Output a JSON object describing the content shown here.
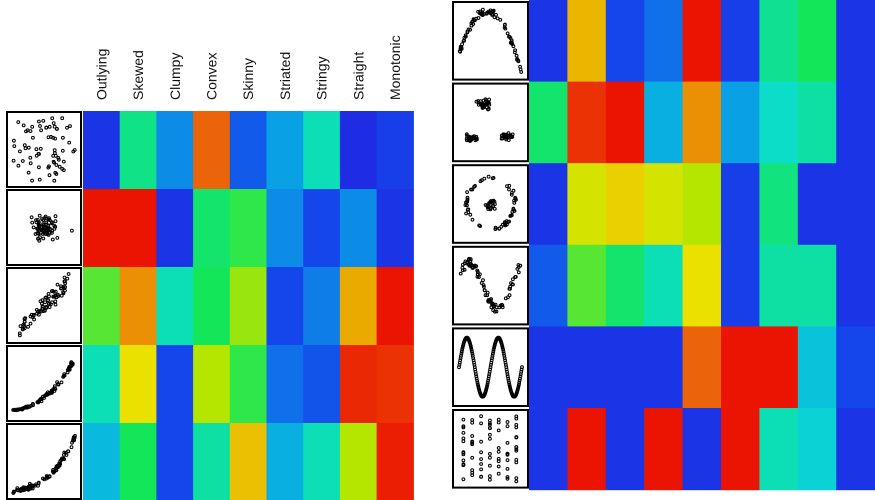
{
  "chart_data": [
    {
      "type": "heatmap",
      "title": "",
      "columns": [
        "Outlying",
        "Skewed",
        "Clumpy",
        "Convex",
        "Skinny",
        "Striated",
        "Stringy",
        "Straight",
        "Monotonic"
      ],
      "rows": [
        {
          "thumbnail": "uniform-random-scatter",
          "values": [
            0.08,
            0.45,
            0.22,
            0.9,
            0.15,
            0.25,
            0.4,
            0.06,
            0.1
          ]
        },
        {
          "thumbnail": "central-cluster-scatter",
          "values": [
            0.98,
            0.98,
            0.08,
            0.48,
            0.52,
            0.22,
            0.12,
            0.22,
            0.08
          ]
        },
        {
          "thumbnail": "linear-correlation-scatter",
          "values": [
            0.55,
            0.85,
            0.4,
            0.5,
            0.6,
            0.12,
            0.2,
            0.82,
            0.98
          ]
        },
        {
          "thumbnail": "curved-fan-scatter",
          "values": [
            0.4,
            0.72,
            0.12,
            0.62,
            0.52,
            0.18,
            0.14,
            0.96,
            0.95
          ]
        },
        {
          "thumbnail": "exponential-curve-scatter",
          "values": [
            0.3,
            0.5,
            0.12,
            0.42,
            0.78,
            0.28,
            0.4,
            0.62,
            0.97
          ]
        }
      ],
      "grid": false,
      "legend": "none"
    },
    {
      "type": "heatmap",
      "title": "",
      "columns": [],
      "rows": [
        {
          "thumbnail": "arch-scatter",
          "values": [
            0.08,
            0.8,
            0.12,
            0.18,
            0.98,
            0.1,
            0.44,
            0.5,
            0.08
          ]
        },
        {
          "thumbnail": "two-cluster-scatter",
          "values": [
            0.48,
            0.95,
            0.98,
            0.28,
            0.85,
            0.25,
            0.38,
            0.42,
            0.08
          ]
        },
        {
          "thumbnail": "ring-scatter",
          "values": [
            0.08,
            0.68,
            0.75,
            0.68,
            0.62,
            0.1,
            0.46,
            0.08,
            0.08
          ]
        },
        {
          "thumbnail": "wave-scatter",
          "values": [
            0.15,
            0.55,
            0.48,
            0.4,
            0.72,
            0.1,
            0.42,
            0.42,
            0.08
          ]
        },
        {
          "thumbnail": "sine-curve",
          "values": [
            0.08,
            0.08,
            0.08,
            0.08,
            0.9,
            0.98,
            0.98,
            0.32,
            0.12
          ]
        },
        {
          "thumbnail": "striated-columns",
          "values": [
            0.08,
            0.98,
            0.08,
            0.98,
            0.08,
            0.98,
            0.4,
            0.35,
            0.08
          ]
        }
      ],
      "grid": false,
      "legend": "none"
    }
  ]
}
